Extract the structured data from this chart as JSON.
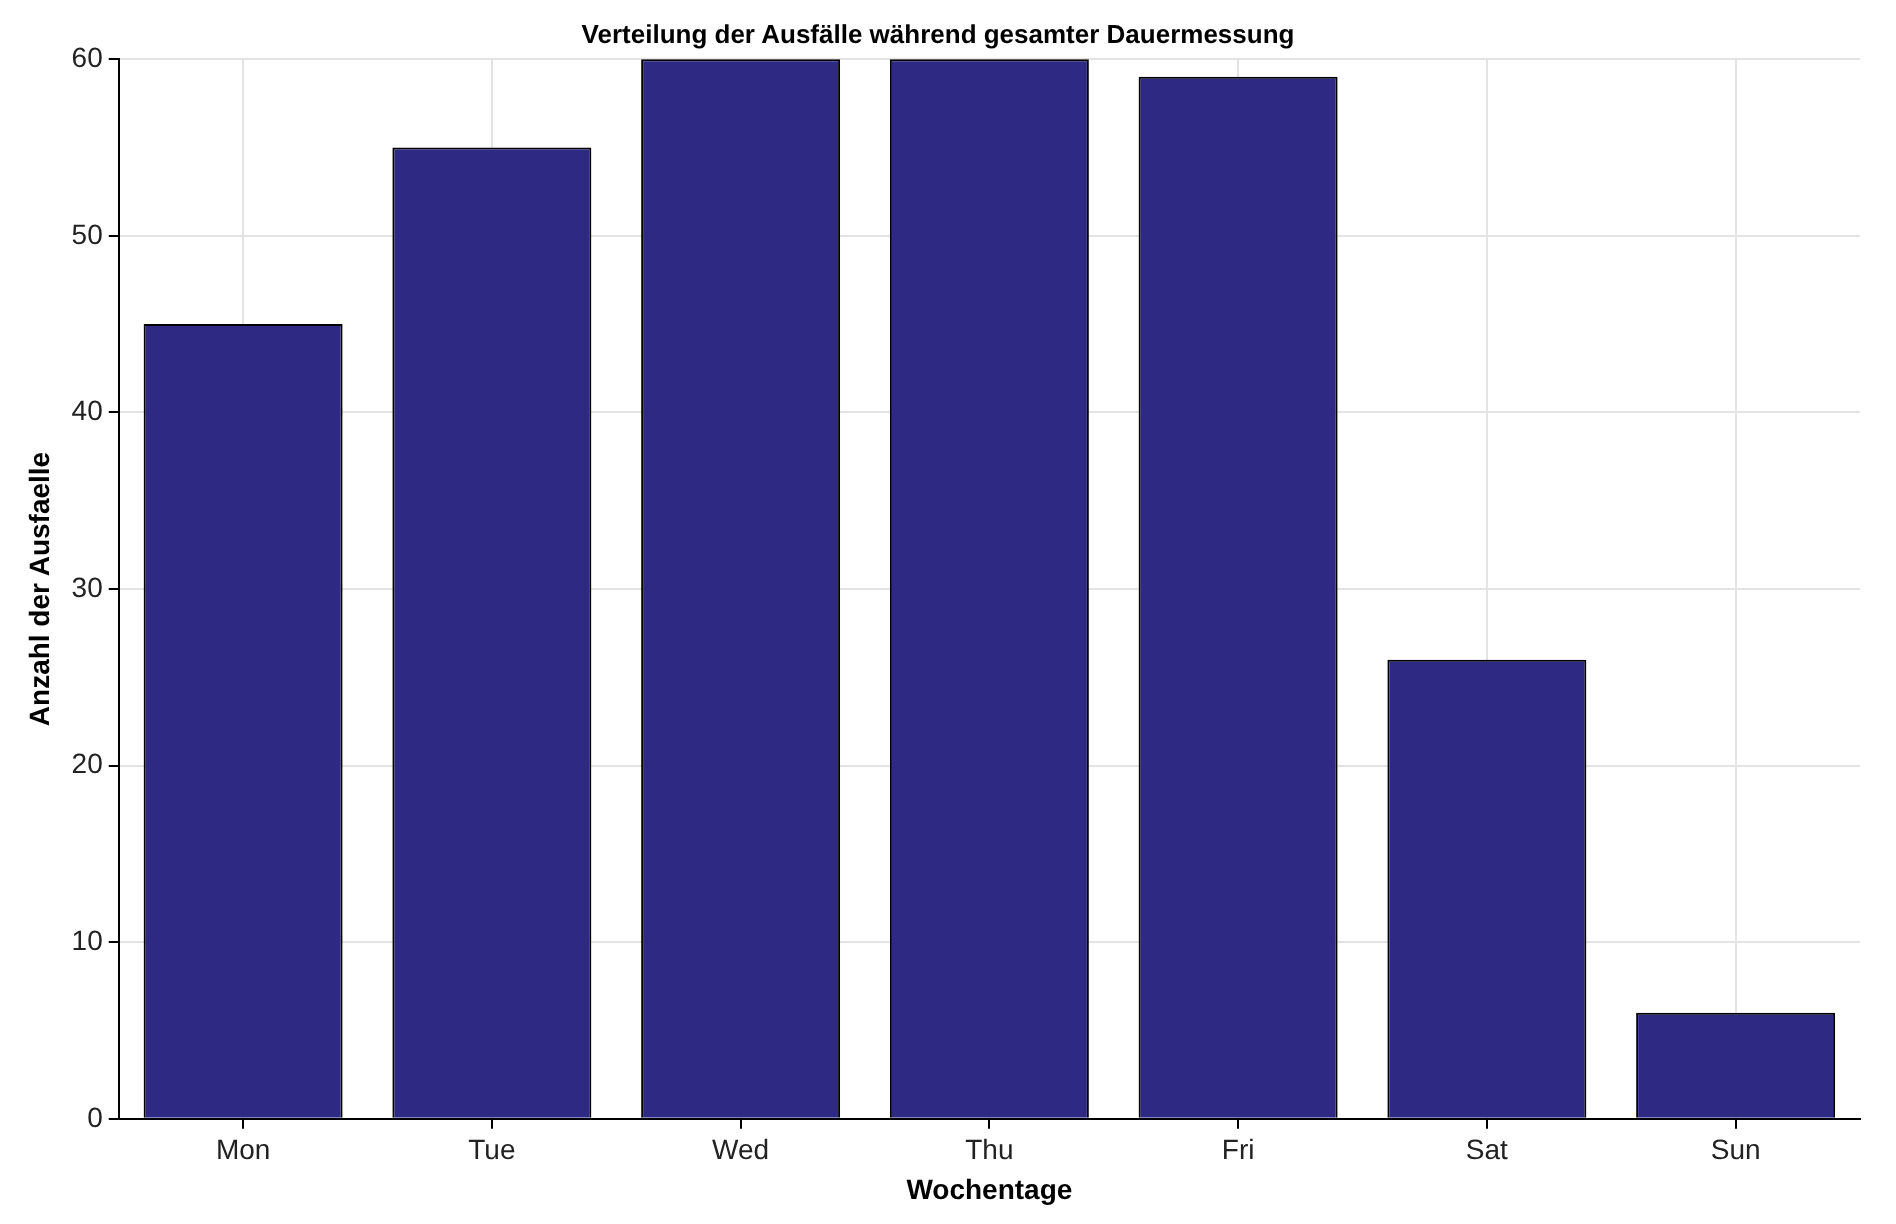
{
  "chart_data": {
    "type": "bar",
    "title": "Verteilung der Ausfälle während gesamter Dauermessung",
    "xlabel": "Wochentage",
    "ylabel": "Anzahl der Ausfaelle",
    "categories": [
      "Mon",
      "Tue",
      "Wed",
      "Thu",
      "Fri",
      "Sat",
      "Sun"
    ],
    "values": [
      45,
      55,
      60,
      60,
      59,
      26,
      6
    ],
    "color": "#2e2a84",
    "ylim": [
      0,
      60
    ],
    "yticks": [
      0,
      10,
      20,
      30,
      40,
      50,
      60
    ],
    "grid": true,
    "legend": false
  }
}
